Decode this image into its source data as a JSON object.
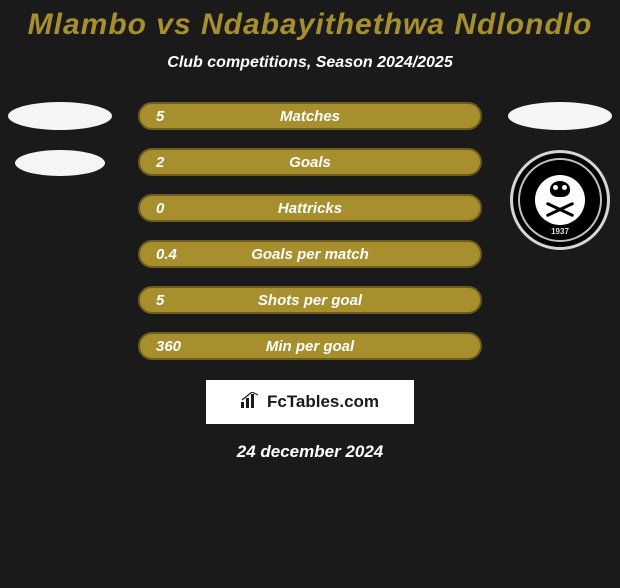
{
  "title": "Mlambo vs Ndabayithethwa Ndlondlo",
  "title_color": "#a78f2e",
  "title_fontsize": 30,
  "subtitle": "Club competitions, Season 2024/2025",
  "subtitle_fontsize": 16,
  "bars": {
    "bg_color": "#a78f2e",
    "border_color": "#6d5c1e",
    "value_fontsize": 15,
    "label_fontsize": 15,
    "items": [
      {
        "value": "5",
        "label": "Matches"
      },
      {
        "value": "2",
        "label": "Goals"
      },
      {
        "value": "0",
        "label": "Hattricks"
      },
      {
        "value": "0.4",
        "label": "Goals per match"
      },
      {
        "value": "5",
        "label": "Shots per goal"
      },
      {
        "value": "360",
        "label": "Min per goal"
      }
    ]
  },
  "crest": {
    "year": "1937"
  },
  "watermark": {
    "text": "FcTables.com",
    "text_color": "#1a1a1a",
    "fontsize": 17
  },
  "footer_date": "24 december 2024",
  "footer_fontsize": 17,
  "background_color": "#1a1a1a"
}
